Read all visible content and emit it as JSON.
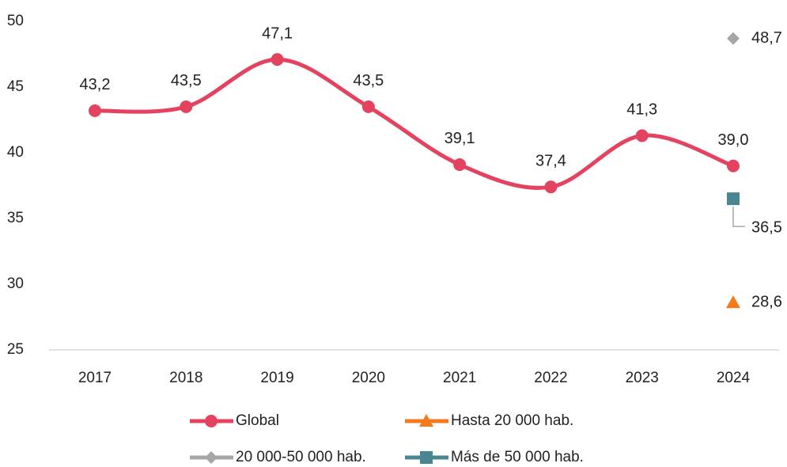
{
  "chart_data": {
    "type": "line",
    "categories": [
      "2017",
      "2018",
      "2019",
      "2020",
      "2021",
      "2022",
      "2023",
      "2024"
    ],
    "series": [
      {
        "name": "Global",
        "color": "#e3435f",
        "marker": "circle",
        "values": [
          43.2,
          43.5,
          47.1,
          43.5,
          39.1,
          37.4,
          41.3,
          39.0
        ],
        "value_labels": [
          "43,2",
          "43,5",
          "47,1",
          "43,5",
          "39,1",
          "37,4",
          "41,3",
          "39,0"
        ]
      },
      {
        "name": "Hasta 20 000 hab.",
        "color": "#f57a1e",
        "marker": "triangle",
        "values": [
          null,
          null,
          null,
          null,
          null,
          null,
          null,
          28.6
        ],
        "value_labels": [
          null,
          null,
          null,
          null,
          null,
          null,
          null,
          "28,6"
        ]
      },
      {
        "name": "20 000-50 000 hab.",
        "color": "#a6a6a6",
        "marker": "diamond",
        "values": [
          null,
          null,
          null,
          null,
          null,
          null,
          null,
          48.7
        ],
        "value_labels": [
          null,
          null,
          null,
          null,
          null,
          null,
          null,
          "48,7"
        ]
      },
      {
        "name": "Más de 50 000 hab.",
        "color": "#4a8592",
        "marker": "square",
        "values": [
          null,
          null,
          null,
          null,
          null,
          null,
          null,
          36.5
        ],
        "value_labels": [
          null,
          null,
          null,
          null,
          null,
          null,
          null,
          "36,5"
        ]
      }
    ],
    "ylim": [
      25,
      50
    ],
    "yticks": [
      25,
      30,
      35,
      40,
      45,
      50
    ],
    "grid": false,
    "smooth": true,
    "legend": "bottom"
  }
}
